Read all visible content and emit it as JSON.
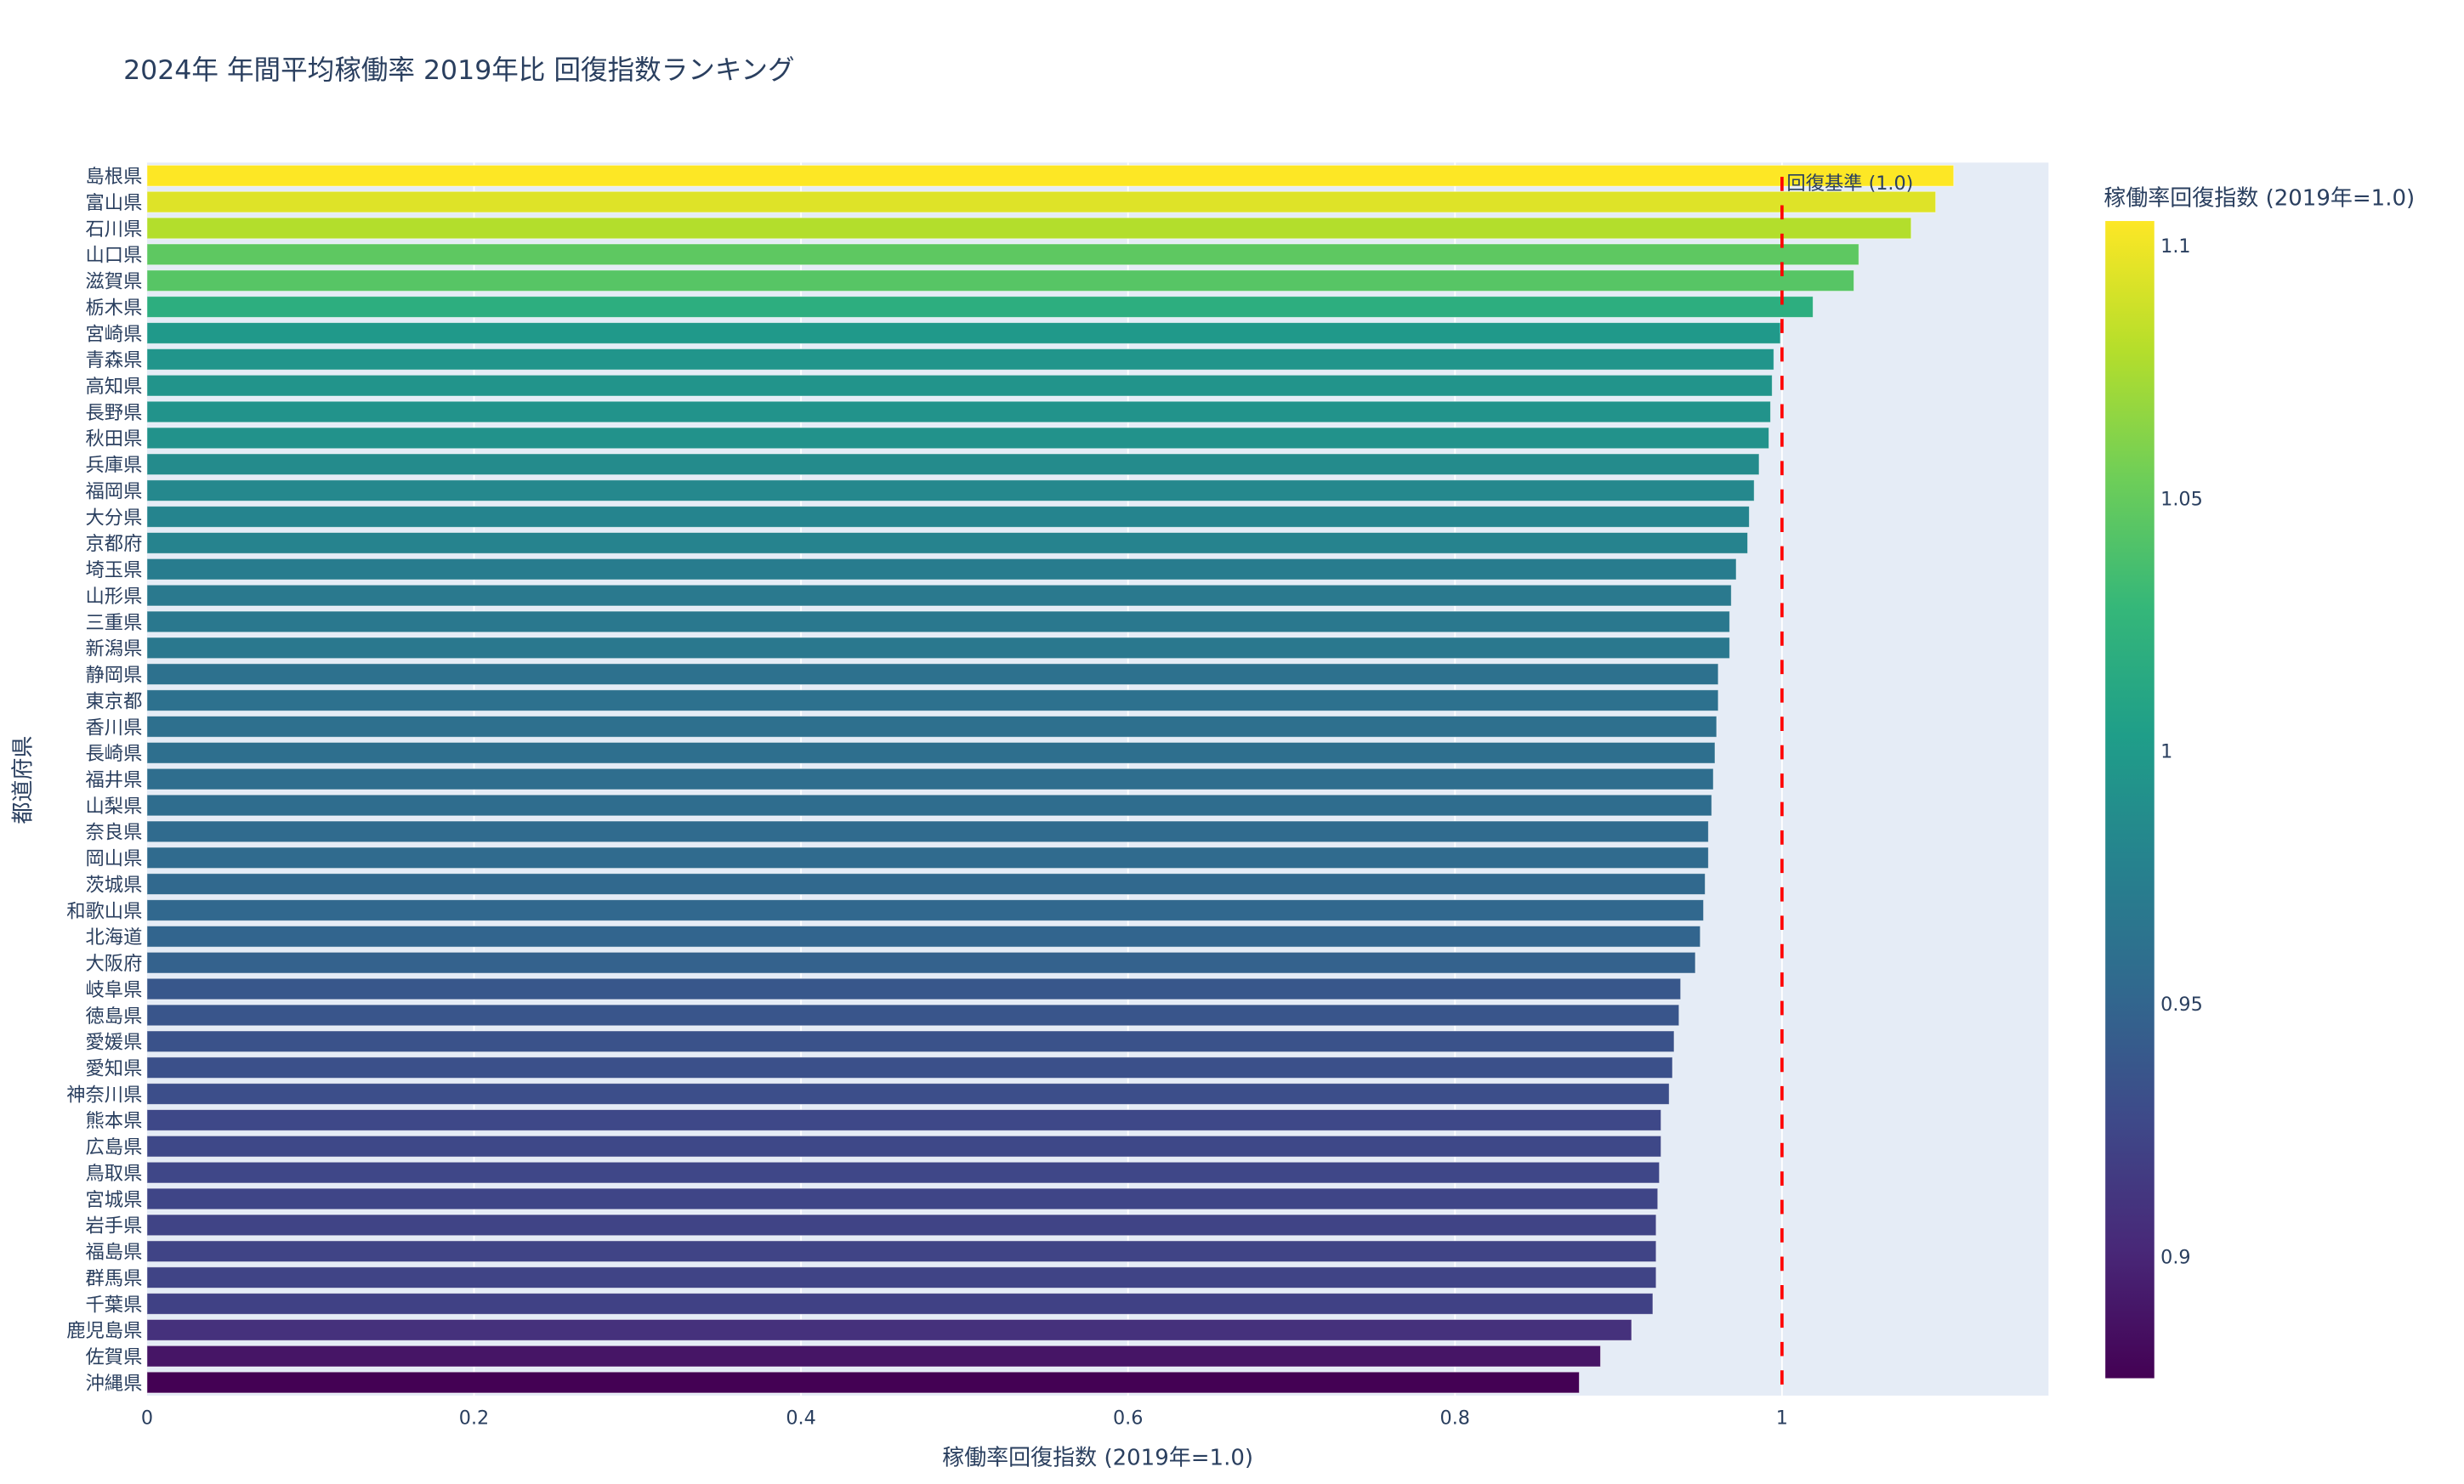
{
  "chart_data": {
    "type": "bar",
    "orientation": "horizontal",
    "title": "2024年 年間平均稼働率 2019年比 回復指数ランキング",
    "xlabel": "稼働率回復指数 (2019年=1.0)",
    "ylabel": "都道府県",
    "xlim": [
      0,
      1.163
    ],
    "xticks": [
      0,
      0.2,
      0.4,
      0.6,
      0.8,
      1
    ],
    "xtick_labels": [
      "0",
      "0.2",
      "0.4",
      "0.6",
      "0.8",
      "1"
    ],
    "grid": true,
    "colorscale": "viridis",
    "colorbar": {
      "title": "稼働率回復指数 (2019年=1.0)",
      "range": [
        0.876,
        1.105
      ],
      "ticks": [
        1.1,
        1.05,
        1,
        0.95,
        0.9
      ],
      "tick_labels": [
        "1.1",
        "1.05",
        "1",
        "0.95",
        "0.9"
      ]
    },
    "reference_line": {
      "value": 1.0,
      "label": "回復基準 (1.0)",
      "color": "#ff0000",
      "style": "dashed"
    },
    "categories": [
      "島根県",
      "富山県",
      "石川県",
      "山口県",
      "滋賀県",
      "栃木県",
      "宮崎県",
      "青森県",
      "高知県",
      "長野県",
      "秋田県",
      "兵庫県",
      "福岡県",
      "大分県",
      "京都府",
      "埼玉県",
      "山形県",
      "三重県",
      "新潟県",
      "静岡県",
      "東京都",
      "香川県",
      "長崎県",
      "福井県",
      "山梨県",
      "奈良県",
      "岡山県",
      "茨城県",
      "和歌山県",
      "北海道",
      "大阪府",
      "岐阜県",
      "徳島県",
      "愛媛県",
      "愛知県",
      "神奈川県",
      "熊本県",
      "広島県",
      "鳥取県",
      "宮城県",
      "岩手県",
      "福島県",
      "群馬県",
      "千葉県",
      "鹿児島県",
      "佐賀県",
      "沖縄県"
    ],
    "values": [
      1.105,
      1.094,
      1.079,
      1.047,
      1.044,
      1.019,
      0.999,
      0.995,
      0.994,
      0.993,
      0.992,
      0.986,
      0.983,
      0.98,
      0.979,
      0.972,
      0.969,
      0.968,
      0.968,
      0.961,
      0.961,
      0.96,
      0.959,
      0.958,
      0.957,
      0.955,
      0.955,
      0.953,
      0.952,
      0.95,
      0.947,
      0.938,
      0.937,
      0.934,
      0.933,
      0.931,
      0.926,
      0.926,
      0.925,
      0.924,
      0.923,
      0.923,
      0.923,
      0.921,
      0.908,
      0.889,
      0.876
    ]
  }
}
